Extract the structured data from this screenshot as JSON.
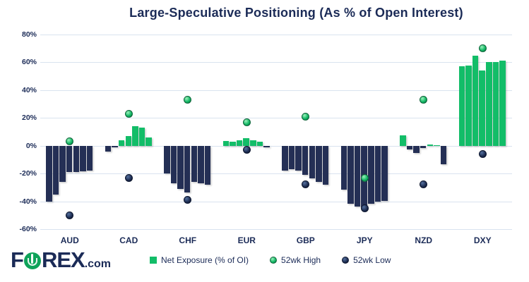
{
  "title": "Large-Speculative Positioning (As % of Open Interest)",
  "logo": {
    "part1": "F",
    "part2": "REX",
    "suffix": ".com"
  },
  "legend": [
    {
      "label": "Net Exposure (% of OI)",
      "swatch": "square-green"
    },
    {
      "label": "52wk High",
      "swatch": "dot-green"
    },
    {
      "label": "52wk Low",
      "swatch": "dot-navy"
    }
  ],
  "colors": {
    "navy_text": "#1B2B57",
    "navy_bar": "#242F55",
    "green_bar": "#12BD68",
    "gridline": "#D9E3EF"
  },
  "chart_data": {
    "type": "bar",
    "title": "Large-Speculative Positioning (As % of Open Interest)",
    "subtitle": "",
    "categories": [
      "AUD",
      "CAD",
      "CHF",
      "EUR",
      "GBP",
      "JPY",
      "NZD",
      "DXY"
    ],
    "bars_note": "7 recent weekly net-exposure readings (% of open interest) per currency; green = positive, navy = negative",
    "bars": {
      "AUD": [
        -40,
        -35,
        -26,
        -19,
        -19,
        -18.5,
        -18
      ],
      "CAD": [
        -4,
        -1,
        4,
        7,
        14,
        13,
        6
      ],
      "CHF": [
        -20,
        -27,
        -31,
        -33.5,
        -26,
        -27,
        -28
      ],
      "EUR": [
        3.5,
        3,
        4,
        5.5,
        4,
        3,
        -1
      ],
      "GBP": [
        -18,
        -17,
        -18,
        -21,
        -23.5,
        -26,
        -28
      ],
      "JPY": [
        -31.5,
        -42,
        -44,
        -44.5,
        -42,
        -40.5,
        -39.5
      ],
      "NZD": [
        7.5,
        -2.5,
        -5,
        -1.5,
        1,
        0.5,
        -13.5
      ],
      "DXY": [
        57,
        57.5,
        65,
        54,
        60,
        60,
        61.5
      ]
    },
    "series": [
      {
        "name": "52wk High",
        "values": [
          3,
          23,
          33,
          17,
          21,
          -23,
          33,
          70
        ]
      },
      {
        "name": "52wk Low",
        "values": [
          -50,
          -23,
          -39,
          -3,
          -28,
          -45,
          -28,
          -6
        ]
      }
    ],
    "ylim": [
      -60,
      80
    ],
    "yticks": [
      "80%",
      "60%",
      "40%",
      "20%",
      "0%",
      "-20%",
      "-40%",
      "-60%"
    ],
    "ytick_values": [
      80,
      60,
      40,
      20,
      0,
      -20,
      -40,
      -60
    ],
    "grid": true,
    "legend_position": "bottom",
    "legend": [
      "Net Exposure (% of OI)",
      "52wk High",
      "52wk Low"
    ]
  }
}
